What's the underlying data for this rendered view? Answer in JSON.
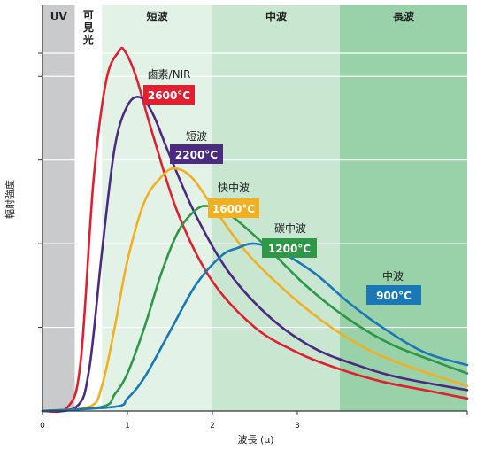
{
  "chart_data": {
    "type": "line",
    "title": "",
    "xlabel": "波長 (μ)",
    "ylabel": "輻射強度",
    "xlim": [
      0,
      5
    ],
    "x_ticks": [
      "0",
      "1",
      "2",
      "3"
    ],
    "grid": true,
    "bands": [
      {
        "label": "UV",
        "from": 0.0,
        "to": 0.38,
        "color": "#c9cacc",
        "label_color": "#ffffff"
      },
      {
        "label": "可見光",
        "from": 0.38,
        "to": 0.7,
        "color": "#ffffff",
        "label_color": "#222222",
        "vertical": true
      },
      {
        "label": "短波",
        "from": 0.7,
        "to": 2.0,
        "color": "#e3f2e7",
        "label_color": "#222222"
      },
      {
        "label": "中波",
        "from": 2.0,
        "to": 3.5,
        "color": "#c8e6d0",
        "label_color": "#222222"
      },
      {
        "label": "長波",
        "from": 3.5,
        "to": 5.0,
        "color": "#99d1a9",
        "label_color": "#222222"
      }
    ],
    "series": [
      {
        "name": "2600°C",
        "color": "#e02030",
        "x": [
          0.0,
          0.3,
          0.45,
          0.6,
          0.75,
          0.9,
          0.97,
          1.1,
          1.3,
          1.6,
          2.0,
          2.5,
          3.0,
          3.5,
          4.0,
          4.5,
          5.0
        ],
        "y": [
          0.0,
          0.01,
          0.12,
          0.55,
          0.79,
          0.86,
          0.86,
          0.8,
          0.66,
          0.47,
          0.31,
          0.2,
          0.14,
          0.1,
          0.07,
          0.05,
          0.03
        ]
      },
      {
        "name": "2200°C",
        "color": "#4b2a82",
        "x": [
          0.0,
          0.4,
          0.55,
          0.7,
          0.85,
          1.0,
          1.15,
          1.3,
          1.5,
          1.8,
          2.2,
          2.7,
          3.2,
          3.7,
          4.2,
          5.0
        ],
        "y": [
          0.0,
          0.01,
          0.1,
          0.38,
          0.63,
          0.73,
          0.75,
          0.71,
          0.61,
          0.47,
          0.33,
          0.22,
          0.15,
          0.11,
          0.08,
          0.05
        ]
      },
      {
        "name": "1600°C",
        "color": "#f0b022",
        "x": [
          0.0,
          0.55,
          0.7,
          0.85,
          1.0,
          1.2,
          1.4,
          1.55,
          1.75,
          2.0,
          2.4,
          2.9,
          3.4,
          3.9,
          4.4,
          5.0
        ],
        "y": [
          0.0,
          0.01,
          0.06,
          0.2,
          0.36,
          0.5,
          0.56,
          0.58,
          0.56,
          0.49,
          0.38,
          0.28,
          0.2,
          0.14,
          0.1,
          0.06
        ]
      },
      {
        "name": "1200°C",
        "color": "#2e9748",
        "x": [
          0.0,
          0.7,
          0.85,
          1.0,
          1.2,
          1.4,
          1.6,
          1.8,
          1.95,
          2.2,
          2.6,
          3.1,
          3.6,
          4.1,
          4.6,
          5.0
        ],
        "y": [
          0.0,
          0.01,
          0.04,
          0.09,
          0.2,
          0.33,
          0.43,
          0.48,
          0.49,
          0.47,
          0.4,
          0.3,
          0.22,
          0.16,
          0.12,
          0.09
        ]
      },
      {
        "name": "900°C",
        "color": "#1a78b6",
        "x": [
          0.0,
          0.85,
          1.0,
          1.2,
          1.5,
          1.8,
          2.1,
          2.3,
          2.5,
          2.8,
          3.2,
          3.6,
          4.0,
          4.5,
          5.0
        ],
        "y": [
          0.0,
          0.01,
          0.03,
          0.08,
          0.19,
          0.3,
          0.37,
          0.39,
          0.4,
          0.38,
          0.33,
          0.26,
          0.2,
          0.14,
          0.11
        ]
      }
    ],
    "annotations": [
      {
        "text": "鹵素/NIR",
        "badge": "2600°C",
        "color": "#e02030"
      },
      {
        "text": "短波",
        "badge": "2200°C",
        "color": "#4b2a82"
      },
      {
        "text": "快中波",
        "badge": "1600°C",
        "color": "#f0b022"
      },
      {
        "text": "碳中波",
        "badge": "1200°C",
        "color": "#2e9748"
      },
      {
        "text": "中波",
        "badge": "900°C",
        "color": "#1a78b6"
      }
    ]
  }
}
